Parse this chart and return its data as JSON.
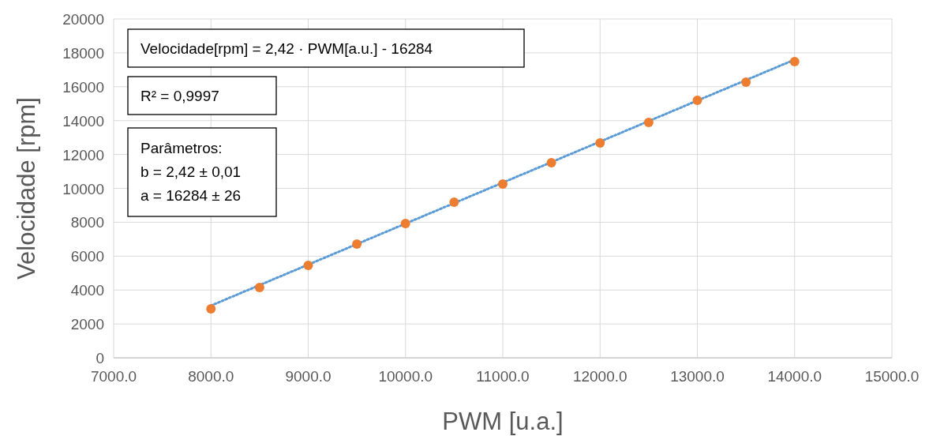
{
  "chart_data": {
    "type": "scatter",
    "xlabel": "PWM [u.a.]",
    "ylabel": "Velocidade [rpm]",
    "annotations": [
      "Velocidade[rpm] = 2,42 · PWM[a.u.] - 16284",
      "R² = 0,9997",
      "Parâmetros:\nb = 2,42 ± 0,01\na = 16284 ± 26"
    ],
    "series": [
      {
        "type": "line",
        "color": "#5b9bd5",
        "line_style": "dotted",
        "marker": "none",
        "x": [
          8000,
          14000
        ],
        "values": [
          3080,
          17600
        ]
      },
      {
        "type": "scatter",
        "color": "#ed7d31",
        "marker": "circle",
        "x": [
          8000,
          8500,
          9000,
          9500,
          10000,
          10500,
          11000,
          11500,
          12000,
          12500,
          13000,
          13500,
          14000
        ],
        "values": [
          2890,
          4150,
          5450,
          6710,
          7930,
          9180,
          10260,
          11510,
          12680,
          13890,
          15200,
          16270,
          17480
        ]
      }
    ],
    "xlim": [
      7000,
      15000
    ],
    "xticks": [
      {
        "value": 7000,
        "label": "7000.0"
      },
      {
        "value": 8000,
        "label": "8000.0"
      },
      {
        "value": 9000,
        "label": "9000.0"
      },
      {
        "value": 10000,
        "label": "10000.0"
      },
      {
        "value": 11000,
        "label": "11000.0"
      },
      {
        "value": 12000,
        "label": "12000.0"
      },
      {
        "value": 13000,
        "label": "13000.0"
      },
      {
        "value": 14000,
        "label": "14000.0"
      },
      {
        "value": 15000,
        "label": "15000.0"
      }
    ],
    "ylim": [
      0,
      20000
    ],
    "yticks": [
      0,
      2000,
      4000,
      6000,
      8000,
      10000,
      12000,
      14000,
      16000,
      18000,
      20000
    ],
    "grid": true
  }
}
